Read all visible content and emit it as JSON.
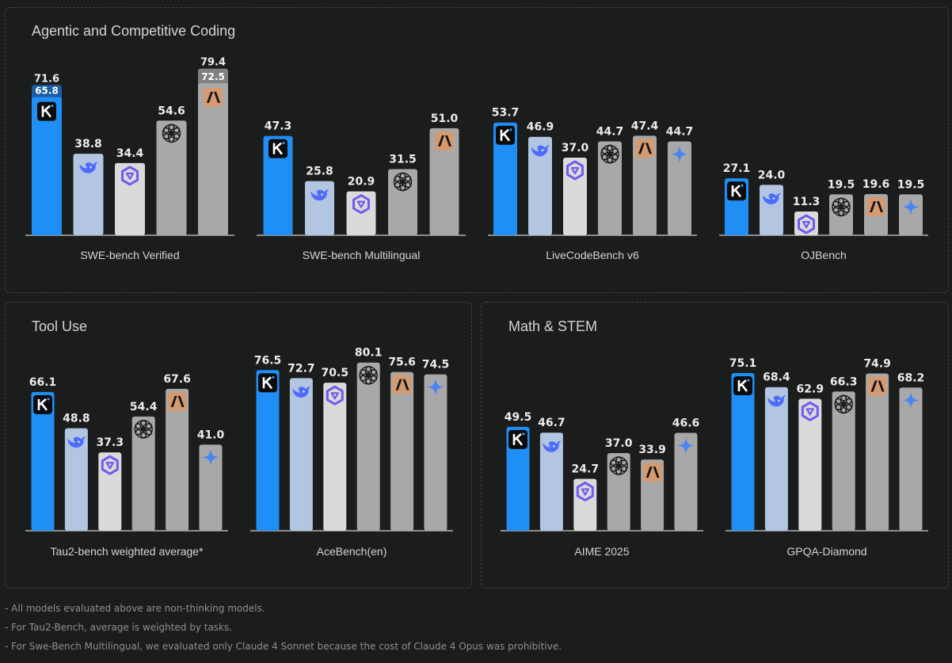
{
  "colors": {
    "kimi": "#1f8ff5",
    "deepseek": "#b2c5e1",
    "qwen": "#dadada",
    "openai": "#a8a8a8",
    "claude": "#a8a8a8",
    "gemini": "#a8a8a8",
    "claude_opus_overlay": "#808080",
    "kimi_overlay": "#1a5ea3"
  },
  "panels": [
    {
      "title": "Agentic and Competitive Coding"
    },
    {
      "title": "Tool Use"
    },
    {
      "title": "Math & STEM"
    }
  ],
  "chart_data": [
    {
      "type": "bar",
      "benchmark": "SWE-bench Verified",
      "models": [
        "kimi",
        "deepseek",
        "qwen",
        "openai",
        "claude"
      ],
      "values": [
        65.8,
        38.8,
        34.4,
        54.6,
        72.5
      ],
      "labels": [
        "65.8",
        "38.8",
        "34.4",
        "54.6",
        "72.5"
      ],
      "extra_values": [
        71.6,
        null,
        null,
        null,
        79.4
      ],
      "extra_labels": [
        "71.6",
        "",
        "",
        "",
        "79.4"
      ]
    },
    {
      "type": "bar",
      "benchmark": "SWE-bench Multilingual",
      "models": [
        "kimi",
        "deepseek",
        "qwen",
        "openai",
        "claude"
      ],
      "values": [
        47.3,
        25.8,
        20.9,
        31.5,
        51.0
      ],
      "labels": [
        "47.3",
        "25.8",
        "20.9",
        "31.5",
        "51.0"
      ]
    },
    {
      "type": "bar",
      "benchmark": "LiveCodeBench v6",
      "models": [
        "kimi",
        "deepseek",
        "qwen",
        "openai",
        "claude",
        "gemini"
      ],
      "values": [
        53.7,
        46.9,
        37.0,
        44.7,
        47.4,
        44.7
      ],
      "labels": [
        "53.7",
        "46.9",
        "37.0",
        "44.7",
        "47.4",
        "44.7"
      ]
    },
    {
      "type": "bar",
      "benchmark": "OJBench",
      "models": [
        "kimi",
        "deepseek",
        "qwen",
        "openai",
        "claude",
        "gemini"
      ],
      "values": [
        27.1,
        24.0,
        11.3,
        19.5,
        19.6,
        19.5
      ],
      "labels": [
        "27.1",
        "24.0",
        "11.3",
        "19.5",
        "19.6",
        "19.5"
      ]
    },
    {
      "type": "bar",
      "benchmark": "Tau2-bench weighted average*",
      "models": [
        "kimi",
        "deepseek",
        "qwen",
        "openai",
        "claude",
        "gemini"
      ],
      "values": [
        66.1,
        48.8,
        37.3,
        54.4,
        67.6,
        41.0
      ],
      "labels": [
        "66.1",
        "48.8",
        "37.3",
        "54.4",
        "67.6",
        "41.0"
      ]
    },
    {
      "type": "bar",
      "benchmark": "AceBench(en)",
      "models": [
        "kimi",
        "deepseek",
        "qwen",
        "openai",
        "claude",
        "gemini"
      ],
      "values": [
        76.5,
        72.7,
        70.5,
        80.1,
        75.6,
        74.5
      ],
      "labels": [
        "76.5",
        "72.7",
        "70.5",
        "80.1",
        "75.6",
        "74.5"
      ]
    },
    {
      "type": "bar",
      "benchmark": "AIME 2025",
      "models": [
        "kimi",
        "deepseek",
        "qwen",
        "openai",
        "claude",
        "gemini"
      ],
      "values": [
        49.5,
        46.7,
        24.7,
        37.0,
        33.9,
        46.6
      ],
      "labels": [
        "49.5",
        "46.7",
        "24.7",
        "37.0",
        "33.9",
        "46.6"
      ]
    },
    {
      "type": "bar",
      "benchmark": "GPQA-Diamond",
      "models": [
        "kimi",
        "deepseek",
        "qwen",
        "openai",
        "claude",
        "gemini"
      ],
      "values": [
        75.1,
        68.4,
        62.9,
        66.3,
        74.9,
        68.2
      ],
      "labels": [
        "75.1",
        "68.4",
        "62.9",
        "66.3",
        "74.9",
        "68.2"
      ]
    }
  ],
  "footnotes": [
    "- All models evaluated above are non-thinking models.",
    "- For Tau2-Bench, average is weighted by tasks.",
    "- For Swe-Bench Multilingual, we evaluated only Claude 4 Sonnet because the cost of Claude 4 Opus was prohibitive."
  ]
}
